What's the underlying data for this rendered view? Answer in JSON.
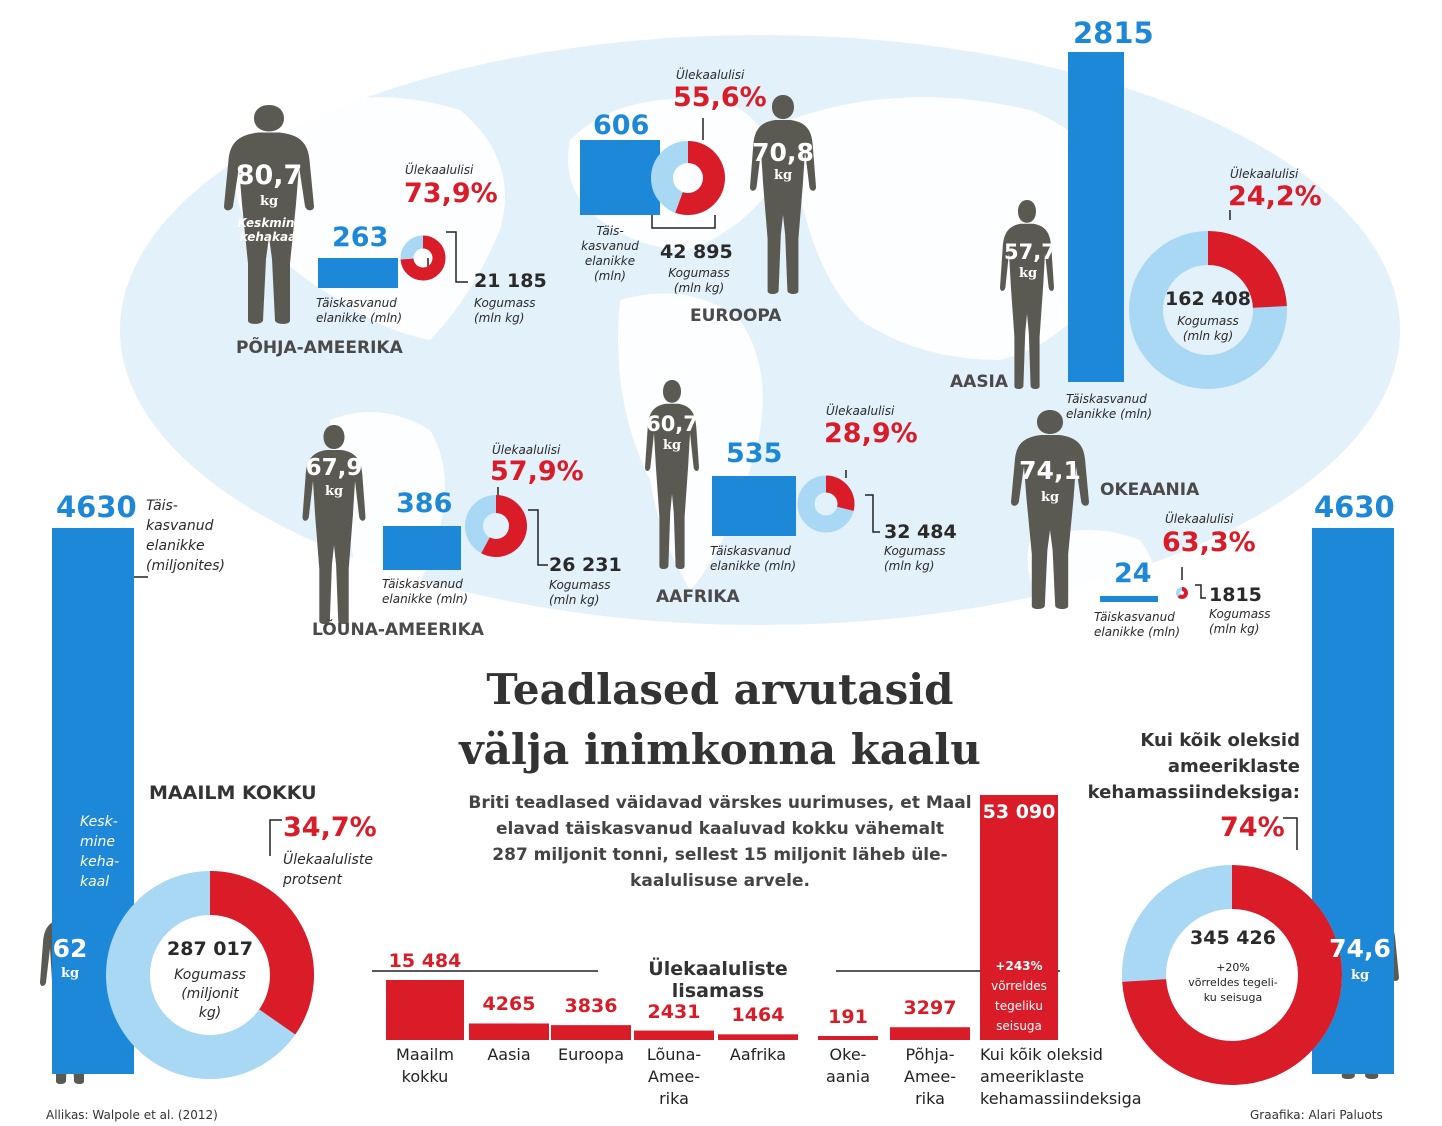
{
  "title": [
    "Teadlased arvutasid",
    "välja inimkonna kaalu"
  ],
  "lead": [
    "Briti teadlased väidavad värskes uurimuses, et Maal",
    "elavad täiskasvanud kaaluvad kokku vähemalt",
    "287 miljonit tonni, sellest 15 miljonit läheb üle-",
    "kaalulisuse arvele."
  ],
  "labels": {
    "overweight": "Ülekaalulisi",
    "adults": "Täiskasvanud elanikke (mln)",
    "adults_a": "Täiskasvanud",
    "adults_b": "elanikke (mln)",
    "europe_adults": [
      "Täis-",
      "kasvanud",
      "elanikke",
      "(mln)"
    ],
    "mass_a": "Kogumass",
    "mass_b": "(mln kg)",
    "kg": "kg",
    "avg_weight": [
      "Keskmine",
      "kehakaal"
    ]
  },
  "regions": [
    {
      "key": "na",
      "name": "PÕHJA-AMEERIKA",
      "adults": "263",
      "overweight_pct": 73.9,
      "overweight_label": "73,9%",
      "mass": "21 185",
      "avg_weight": "80,7"
    },
    {
      "key": "eu",
      "name": "EUROOPA",
      "adults": "606",
      "overweight_pct": 55.6,
      "overweight_label": "55,6%",
      "mass": "42 895",
      "avg_weight": "70,8"
    },
    {
      "key": "as",
      "name": "AASIA",
      "adults": "2815",
      "overweight_pct": 24.2,
      "overweight_label": "24,2%",
      "mass": "162 408",
      "avg_weight": "57,7"
    },
    {
      "key": "sa",
      "name": "LÕUNA-AMEERIKA",
      "adults": "386",
      "overweight_pct": 57.9,
      "overweight_label": "57,9%",
      "mass": "26 231",
      "avg_weight": "67,9"
    },
    {
      "key": "af",
      "name": "AAFRIKA",
      "adults": "535",
      "overweight_pct": 28.9,
      "overweight_label": "28,9%",
      "mass": "32 484",
      "avg_weight": "60,7"
    },
    {
      "key": "oc",
      "name": "OKEAANIA",
      "adults": "24",
      "overweight_pct": 63.3,
      "overweight_label": "63,3%",
      "mass": "1815",
      "avg_weight": "74,1"
    }
  ],
  "world": {
    "heading": "MAAILM KOKKU",
    "adults": "4630",
    "adults_label": [
      "Täis-",
      "kasvanud",
      "elanikke",
      "(miljonites)"
    ],
    "avg_label": [
      "Kesk-",
      "mine",
      "keha-",
      "kaal"
    ],
    "avg_weight": "62",
    "overweight_pct": 34.7,
    "overweight_label": "34,7%",
    "overweight_caption": [
      "Ülekaaluliste",
      "protsent"
    ],
    "mass": "287 017",
    "mass_caption": [
      "Kogumass",
      "(miljonit",
      "kg)"
    ]
  },
  "us_bmi": {
    "heading": [
      "Kui kõik oleksid",
      "ameeriklaste",
      "kehamassiindeksiga:"
    ],
    "adults": "4630",
    "avg_weight": "74,6",
    "overweight_pct": 74,
    "overweight_label": "74%",
    "mass": "345 426",
    "mass_caption": [
      "+20%",
      "võrreldes tegeli-",
      "ku seisuga"
    ]
  },
  "chart_data": [
    {
      "type": "bar",
      "title": "Ülekaaluliste lisamass",
      "categories": [
        [
          "Maailm",
          "kokku"
        ],
        [
          "Aasia"
        ],
        [
          "Euroopa"
        ],
        [
          "Lõuna-",
          "Amee-",
          "rika"
        ],
        [
          "Aafrika"
        ],
        [
          "Oke-",
          "aania"
        ],
        [
          "Põhja-",
          "Amee-",
          "rika"
        ],
        [
          "Kui kõik oleksid",
          "ameeriklaste",
          "kehamassiindeksiga"
        ]
      ],
      "values": [
        15484,
        4265,
        3836,
        2431,
        1464,
        191,
        3297,
        53090
      ],
      "value_labels": [
        "15 484",
        "4265",
        "3836",
        "2431",
        "1464",
        "191",
        "3297",
        "53 090"
      ],
      "annotation": [
        "+243%",
        "võrreldes",
        "tegeliku",
        "seisuga"
      ],
      "colors": {
        "bar": "#d91c28"
      }
    }
  ],
  "colors": {
    "blue": "#1e88d8",
    "light_blue": "#a8d8f4",
    "red": "#d91c28",
    "figure": "#5b5a52",
    "map": "#e3f1fb",
    "land": "#ffffff"
  },
  "credits": {
    "source": "Allikas: Walpole et al. (2012)",
    "graphics": "Graafika: Alari Paluots"
  }
}
